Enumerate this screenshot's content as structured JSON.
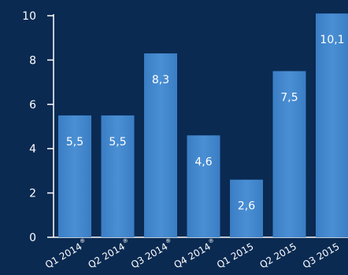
{
  "colors": {
    "background": "#0a2a52",
    "bar": "#3a7dc4",
    "bar_highlight": "#4a8fd4",
    "axis": "#ffffff",
    "text": "#ffffff"
  },
  "chart_data": {
    "type": "bar",
    "title": "",
    "xlabel": "",
    "ylabel": "",
    "ylim": [
      0,
      10
    ],
    "yticks": [
      0,
      2,
      4,
      6,
      8,
      10
    ],
    "ytick_labels": [
      "0",
      "2",
      "4",
      "6",
      "8",
      "10"
    ],
    "grid": false,
    "categories": [
      "Q1 2014",
      "Q2 2014",
      "Q3 2014",
      "Q4 2014",
      "Q1 2015",
      "Q2 2015",
      "Q3 2015"
    ],
    "category_marks": [
      "®",
      "®",
      "®",
      "®",
      "",
      "",
      ""
    ],
    "values": [
      5.5,
      5.5,
      8.3,
      4.6,
      2.6,
      7.5,
      10.1
    ],
    "value_labels": [
      "5,5",
      "5,5",
      "8,3",
      "4,6",
      "2,6",
      "7,5",
      "10,1"
    ]
  }
}
